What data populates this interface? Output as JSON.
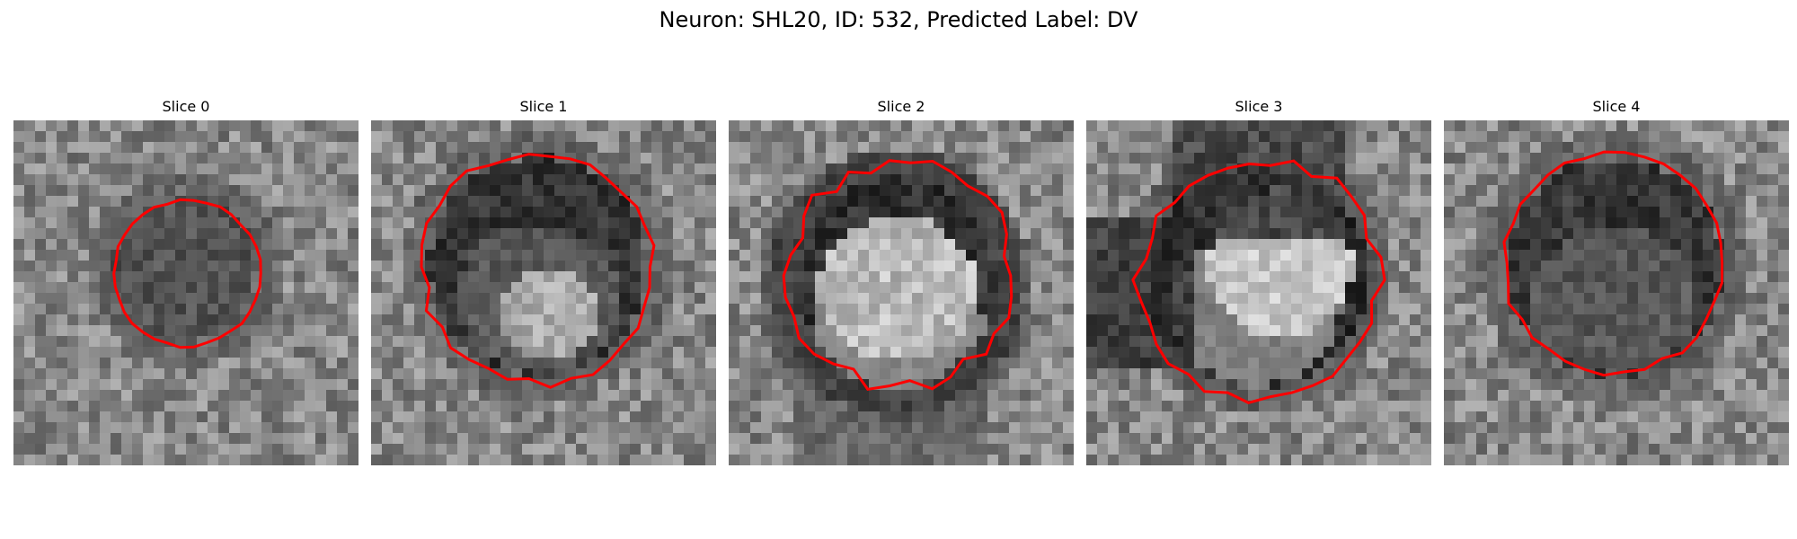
{
  "figure": {
    "title": "Neuron: SHL20, ID: 532, Predicted Label: DV",
    "contour_color": "#ff0000",
    "colormap": "grayscale",
    "panels": [
      {
        "title": "Slice 0",
        "contour": "small dark soma"
      },
      {
        "title": "Slice 1",
        "contour": "large dark soma with bright core"
      },
      {
        "title": "Slice 2",
        "contour": "dark ring around bright center"
      },
      {
        "title": "Slice 3",
        "contour": "dark crescent around bright center"
      },
      {
        "title": "Slice 4",
        "contour": "dark speckled soma"
      }
    ]
  }
}
